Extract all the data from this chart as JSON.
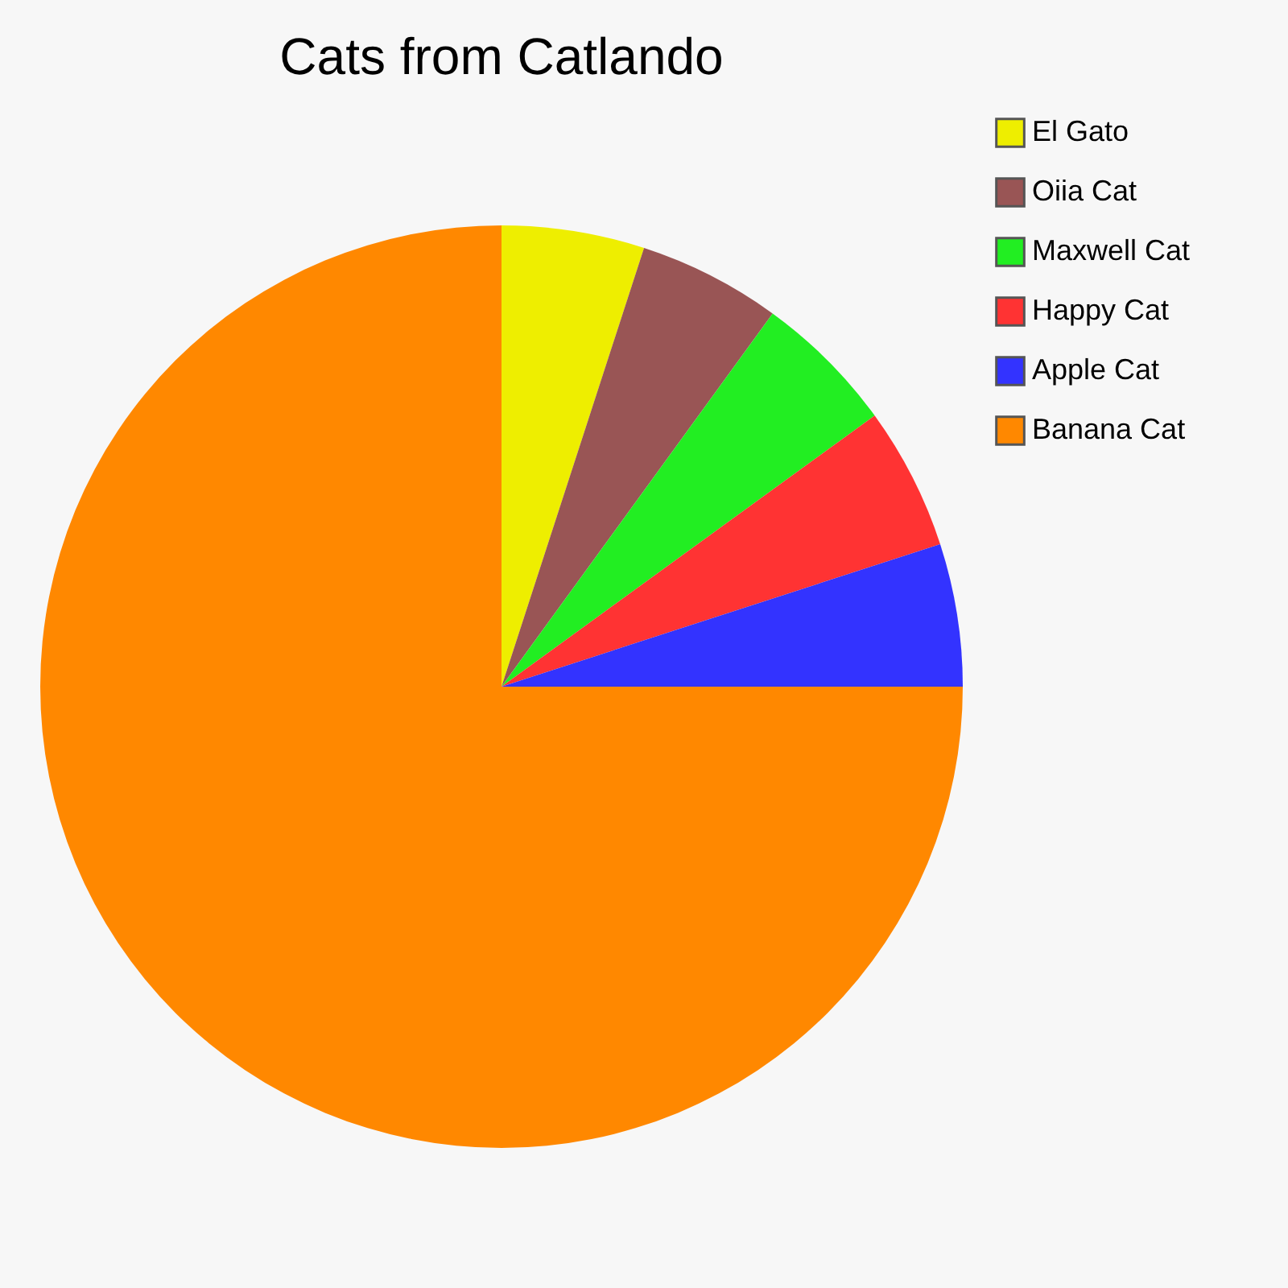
{
  "chart_data": {
    "type": "pie",
    "title": "Cats from Catlando",
    "categories": [
      "El Gato",
      "Oiia Cat",
      "Maxwell Cat",
      "Happy Cat",
      "Apple Cat",
      "Banana Cat"
    ],
    "values": [
      5,
      5,
      5,
      5,
      5,
      75
    ],
    "colors": [
      "#eeee00",
      "#995555",
      "#22ee22",
      "#ff3333",
      "#3333ff",
      "#ff8800"
    ],
    "legend": "right"
  }
}
